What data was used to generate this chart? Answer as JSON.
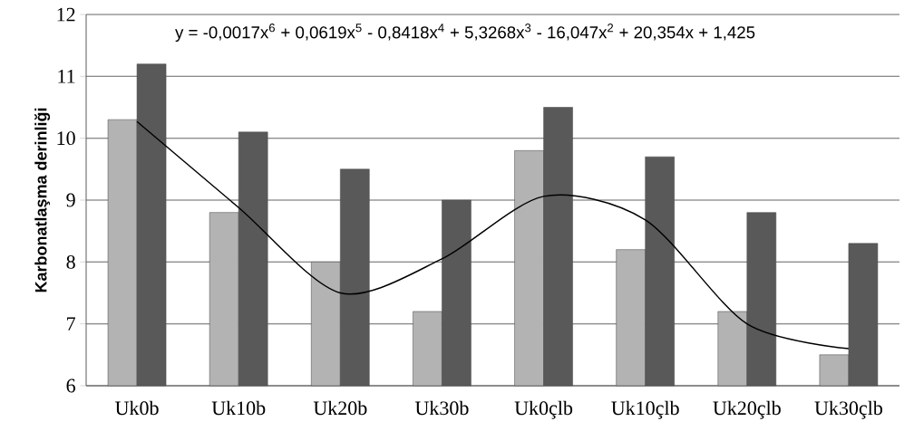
{
  "chart_data": {
    "type": "bar",
    "ylabel": "Karbonatlaşma derinliği",
    "categories": [
      "Uk0b",
      "Uk10b",
      "Uk20b",
      "Uk30b",
      "Uk0çlb",
      "Uk10çlb",
      "Uk20çlb",
      "Uk30çlb"
    ],
    "series": [
      {
        "color": "#b3b3b3",
        "values": [
          10.3,
          8.8,
          8.0,
          7.2,
          9.8,
          8.2,
          7.2,
          6.5
        ]
      },
      {
        "color": "#595959",
        "values": [
          11.2,
          10.1,
          9.5,
          9.0,
          10.5,
          9.7,
          8.8,
          8.3
        ]
      },
      {
        "type": "line",
        "color": "#000000",
        "values": [
          10.27,
          8.88,
          7.5,
          8.05,
          9.06,
          8.68,
          7.0,
          6.6
        ]
      }
    ],
    "ylim": [
      6,
      12
    ],
    "yticks": [
      6,
      7,
      8,
      9,
      10,
      11,
      12
    ],
    "grid": "y",
    "annotations": [
      "y = -0,0017x$^{6}$ + 0,0619x$^{5}$ - 0,8418x$^{4}$ + 5,3268x$^{3}$ - 16,047x$^{2}$ + 20,354x + 1,425"
    ]
  }
}
